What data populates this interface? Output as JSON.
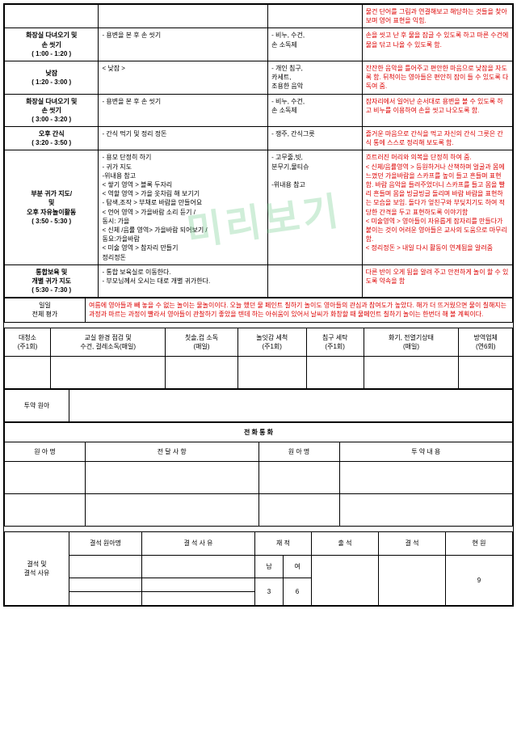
{
  "rows": [
    {
      "time": "",
      "activity": "",
      "materials": "",
      "note": "물건 단어를 그림과 연결해보고 해당하는 것들을 찾아보며 영어 표현을 익힘."
    },
    {
      "time": "화장실 다녀오기 및\n손 씻기\n( 1:00 - 1:20 )",
      "activity": "- 용변을 본 후 손 씻기",
      "materials": "- 비누, 수건,\n  손 소독제",
      "note": "손을 씻고 난 후 물을 잠글 수 있도록 하고 마른 수건에 물을 닦고 나올 수 있도록 함."
    },
    {
      "time": "낮잠\n( 1:20 - 3:00 )",
      "activity": "< 낮잠 >",
      "materials": "- 개인 침구,\n  카세트,\n  조용한 음악",
      "note": "잔잔한 음악을 틀어주고 편안한 마음으로 낮잠을 자도록 함. 뒤척이는 영아들은 편안히 잠이 들 수 있도록 다독여 줌."
    },
    {
      "time": "화장실 다녀오기 및\n손 씻기\n( 3:00 - 3:20 )",
      "activity": "- 용변을 본 후 손 씻기",
      "materials": "- 비누, 수건,\n  손 소독제",
      "note": "잠자리에서 일어난 순서대로 용변을 볼 수 있도록 하고 비누를 이용하여 손을 씻고 나오도록 함."
    },
    {
      "time": "오후 간식\n( 3:20 - 3:50 )",
      "activity": "- 간식 먹기 및 정리 정돈",
      "materials": "- 쟁주, 간식그릇",
      "note": "즐거운 마음으로 간식을 먹고 자신의 간식 그릇은 간식 통에 스스로 정리해 보도록 함."
    },
    {
      "time": "부분 귀가 지도/\n및\n오후 자유놀이활동\n( 3:50 - 5:30 )",
      "activity": "- 용모 단정히 하기\n- 귀가 지도\n-위내용 참고\n< 쌓기 영역 > 블록 두자리\n< 역할 영역 > 가을 옷차림 해 보기기\n- 탐색,조작 > 부채로 바람을 만들어요\n< 언어 영역 > 가을바람 소리 듣기 /\n                동시: 가을\n< 신체 /음률 영역> 가을바람 되어보기 /\n                동요:가을바람\n< 미술 영역 >  참자리 만들기\n정리정돈",
      "materials": "- 고무줄,빗,\n  분무기,물티슈\n\n-위내용 참고",
      "note": "흐트러진 머리와 의복을 단정히 하여 줌.\n< 신체/음률영역 > 등원하거나 산책하며 얼굴과 몸에 느꼈던 가을바람을 스카프를 높이 들고 흔들며 표현 함. 바람 음악을 들려주었더니 스카프를 들고 몸을 빨리 흔들며 몸을 빙글빙글 돌리며 바람 바람을 표현하는 모습을 보임. 돌다가 엎친구와 부딪치기도 하여 적당한 간격을 두고 표현하도록 이야기함\n< 미술영역 > 영아들이 자유롭게 잠자리를 만들다가 붙이는 것이 어려운 영아들은 교사의 도움으로 마무리 함.\n< 정리정돈 > 내일 다시 활동이 연계됨을 알려줌"
    },
    {
      "time": "통합보육 및\n개별 귀가 지도\n( 5:30 - 7:30 )",
      "activity": "- 통합 보육실로 이동한다.\n- 부모님께서 오시는 대로 개별 귀가한다.",
      "materials": "",
      "note": "다른 반이 오게 됨을 알려 주고 안전하게 놀이 할 수 있도록 약속을 함"
    }
  ],
  "eval_label": "일일\n전체 평가",
  "eval_text": "여름에 영아들과 빼 놓을 수 없는 놀이는 물놀이이다. 오늘 했던 물 페인트 칠하기 놀이도 영아들의 관심과 참여도가 높았다. 해가 더 뜨거웠으면 물이 칠해지는 과정과 마르는 과정이 빨라서 영아들이 관찰하기 좋았을 텐데 하는 아쉬움이 있어서 날씨가 화창할 때 물페인트 칠하기 놀이는 한번더 해 볼 계획이다.",
  "clean": {
    "h1": "대청소\n(주1회)",
    "h2": "교실 환경 점검 및\n수건, 걸레소독(매일)",
    "h3": "칫솔,컵 소독\n(매일)",
    "h4": "놀잇감 세척\n(주1회)",
    "h5": "침구 세탁\n(주1회)",
    "h6": "화기, 전열기상태\n(매일)",
    "h7": "방역업체\n(연6회)"
  },
  "med_label": "투약 원아",
  "call_header": "전 화 통 화",
  "call": {
    "c1": "원 아 명",
    "c2": "전 달 사 항",
    "c3": "원 아 명",
    "c4": "투 약 내 용"
  },
  "absent": {
    "label": "결석 및\n결석 사유",
    "h_name": "결석 원아명",
    "h_reason": "결 석 사 유",
    "h_enroll": "재 적",
    "h_attend": "출 석",
    "h_absent": "결 석",
    "h_current": "현 원",
    "male": "남",
    "female": "여",
    "male_n": "3",
    "female_n": "6",
    "current_n": "9"
  }
}
